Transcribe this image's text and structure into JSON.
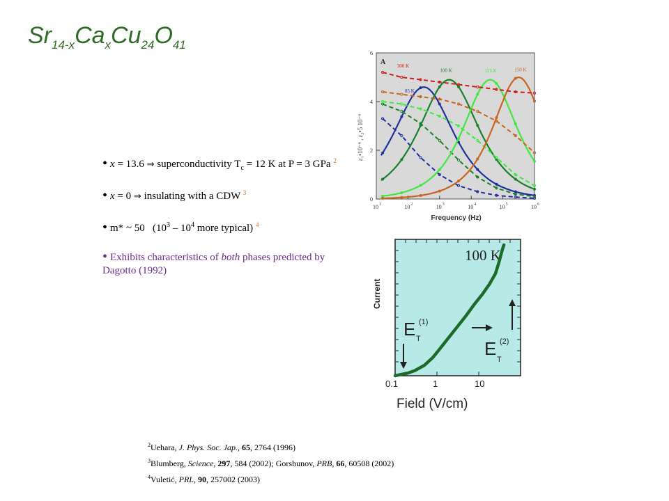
{
  "slide": {
    "title": {
      "base": "Sr",
      "sub1": "14-x",
      "ca": "Ca",
      "sub2": "x",
      "cu": "Cu",
      "sub3": "24",
      "o": "O",
      "sub4": "41"
    },
    "bullets": [
      {
        "x_label": "x",
        "eq": " = 13.6 ",
        "arrow": "⇒",
        "text": " superconductivity T",
        "tsub": "c",
        "text2": " = 12 K at P = 3 GPa ",
        "ref": "2"
      },
      {
        "x_label": "x",
        "eq": " = 0 ",
        "arrow": "⇒",
        "text": " insulating with a CDW ",
        "ref": "3"
      },
      {
        "pre": "m* ~ 50   (10",
        "e1": "3",
        "mid": " – 10",
        "e2": "4",
        "post": " more typical) ",
        "ref": "4"
      },
      {
        "pre": "Exhibits characteristics of ",
        "italic": "both",
        "post": " phases predicted by Dagotto (1992)"
      }
    ],
    "references": [
      {
        "num": "2",
        "author": "Uehara, ",
        "journal": "J. Phys. Soc. Jap.",
        "sep": ", ",
        "vol": "65",
        "rest": ", 2764 (1996)"
      },
      {
        "num": "3",
        "author": "Blumberg, ",
        "journal": "Science",
        "sep": ", ",
        "vol": "297",
        "rest": ", 584 (2002); Gorshunov, ",
        "journal2": "PRB",
        "sep2": ", ",
        "vol2": "66",
        "rest2": ", 60508 (2002)"
      },
      {
        "num": "4",
        "author": "Vuletić, ",
        "journal": "PRL",
        "sep": ", ",
        "vol": "90",
        "rest": ", 257002 (2003)"
      }
    ]
  },
  "chart_data": [
    {
      "type": "line",
      "panel_label": "A",
      "xlabel": "Frequency (Hz)",
      "ylabel": "ε₁•10⁻⁶ , ε₂•5 10⁻⁶",
      "x_scale": "log",
      "xlim": [
        10,
        1000000
      ],
      "ylim": [
        0,
        6
      ],
      "x_ticks": [
        10,
        100,
        1000,
        10000,
        100000,
        1000000
      ],
      "x_tick_labels": [
        "10",
        "10",
        "10",
        "10",
        "10",
        "10"
      ],
      "x_tick_exponents": [
        "1",
        "2",
        "3",
        "4",
        "5",
        "6"
      ],
      "y_ticks": [
        0,
        2,
        4,
        6
      ],
      "y_tick_labels": [
        "0",
        "2",
        "4",
        "6"
      ],
      "background": "#d9d9d9",
      "series": [
        {
          "name": "85 K",
          "color": "#1f2f9e",
          "eps2_peak_logf": 2.5,
          "eps2_peak": 4.6,
          "eps2_width": 1.1,
          "eps1_x": [
            1.2,
            1.8,
            2.4,
            3.0,
            3.6,
            4.2,
            4.8,
            5.4,
            6.0
          ],
          "eps1": [
            3.3,
            2.6,
            1.7,
            1.0,
            0.55,
            0.3,
            0.15,
            0.08,
            0.03
          ]
        },
        {
          "name": "100 K",
          "color": "#1a7f2a",
          "eps2_peak_logf": 3.3,
          "eps2_peak": 4.9,
          "eps2_width": 1.1,
          "eps1_x": [
            1.2,
            1.8,
            2.4,
            3.0,
            3.6,
            4.2,
            4.8,
            5.4,
            6.0
          ],
          "eps1": [
            3.9,
            3.6,
            3.1,
            2.4,
            1.6,
            0.9,
            0.45,
            0.2,
            0.1
          ]
        },
        {
          "name": "125 K",
          "color": "#3fe840",
          "eps2_peak_logf": 4.6,
          "eps2_peak": 4.9,
          "eps2_width": 1.0,
          "eps1_x": [
            1.2,
            1.8,
            2.4,
            3.0,
            3.6,
            4.2,
            4.8,
            5.4,
            6.0
          ],
          "eps1": [
            4.0,
            3.9,
            3.7,
            3.4,
            3.0,
            2.4,
            1.7,
            1.0,
            0.55
          ]
        },
        {
          "name": "150 K",
          "color": "#c8641e",
          "eps2_peak_logf": 5.5,
          "eps2_peak": 5.0,
          "eps2_width": 0.95,
          "eps1_x": [
            1.2,
            1.8,
            2.4,
            3.0,
            3.6,
            4.2,
            4.8,
            5.4,
            6.0
          ],
          "eps1": [
            4.4,
            4.3,
            4.2,
            4.1,
            3.9,
            3.6,
            3.2,
            2.6,
            1.9
          ]
        },
        {
          "name": "300 K",
          "color": "#cc1c1c",
          "eps1_x": [
            1.2,
            1.8,
            2.4,
            3.0,
            3.6,
            4.2,
            4.8,
            5.4,
            6.0
          ],
          "eps1": [
            5.2,
            5.0,
            4.9,
            4.8,
            4.7,
            4.6,
            4.5,
            4.4,
            4.35
          ]
        }
      ]
    },
    {
      "type": "line",
      "annotation": "100 K",
      "xlabel": "Field (V/cm)",
      "ylabel": "Current",
      "x_scale": "log",
      "xlim": [
        0.1,
        100
      ],
      "x_ticks": [
        0.1,
        1,
        10
      ],
      "x_tick_labels": [
        "0.1",
        "1",
        "10"
      ],
      "background": "#b7e9e6",
      "curve_color": "#1d6a2a",
      "series": [
        {
          "x": [
            0.1,
            0.14,
            0.2,
            0.3,
            0.5,
            0.8,
            1.2,
            2,
            3,
            5,
            8,
            12,
            18,
            25,
            30,
            35,
            38,
            40
          ],
          "y": [
            0.0,
            0.01,
            0.02,
            0.04,
            0.08,
            0.14,
            0.21,
            0.3,
            0.37,
            0.46,
            0.55,
            0.62,
            0.7,
            0.78,
            0.86,
            0.94,
            0.98,
            1.0
          ]
        }
      ],
      "labels": [
        {
          "main": "E",
          "sub": "T",
          "sup": "(1)"
        },
        {
          "main": "E",
          "sub": "T",
          "sup": "(2)"
        }
      ]
    }
  ]
}
